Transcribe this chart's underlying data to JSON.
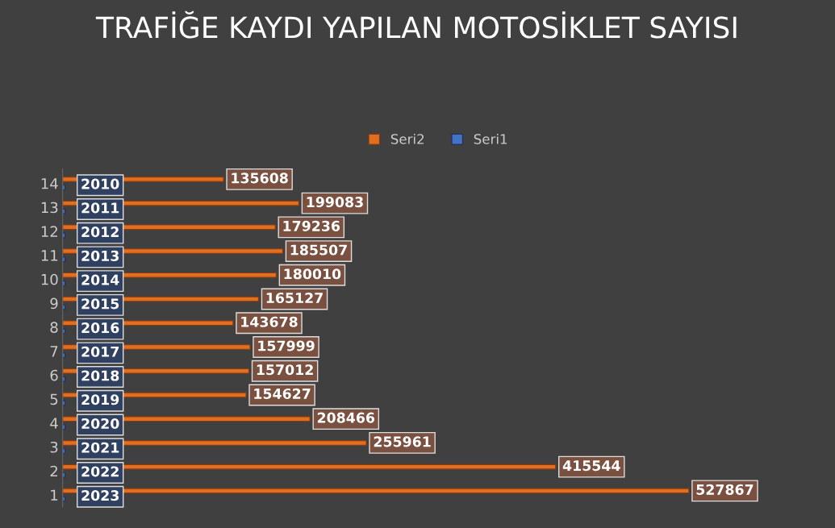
{
  "chart_data": {
    "type": "bar",
    "orientation": "horizontal",
    "title": "TRAFİĞE KAYDI YAPILAN MOTOSİKLET SAYISI",
    "categories": [
      "14",
      "13",
      "12",
      "11",
      "10",
      "9",
      "8",
      "7",
      "6",
      "5",
      "4",
      "3",
      "2",
      "1"
    ],
    "series": [
      {
        "name": "Seri2",
        "color": "#e07020",
        "values": [
          135608,
          199083,
          179236,
          185507,
          180010,
          165127,
          143678,
          157999,
          157012,
          154627,
          208466,
          255961,
          415544,
          527867
        ]
      },
      {
        "name": "Seri1",
        "color": "#4472c4",
        "values": [
          2010,
          2011,
          2012,
          2013,
          2014,
          2015,
          2016,
          2017,
          2018,
          2019,
          2020,
          2021,
          2022,
          2023
        ]
      }
    ],
    "data_labels": true,
    "legend": "top",
    "grid": false,
    "tick_labels": "y"
  }
}
